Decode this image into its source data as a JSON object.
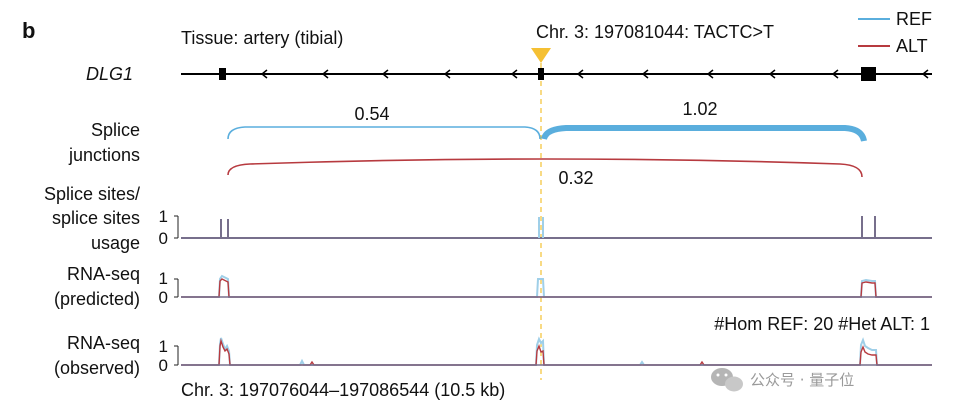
{
  "panel_label": "b",
  "legend": {
    "ref": {
      "label": "REF",
      "color": "#5aaedd"
    },
    "alt": {
      "label": "ALT",
      "color": "#b73a3f"
    }
  },
  "tissue_label": "Tissue: artery (tibial)",
  "variant_label": "Chr. 3: 197081044: TACTC>T",
  "gene_label": "DLG1",
  "splice_junctions": {
    "label_line1": "Splice",
    "label_line2": "junctions",
    "ref_left_value": "0.54",
    "ref_right_value": "1.02",
    "alt_value": "0.32"
  },
  "splice_sites_track": {
    "label_line1": "Splice sites/",
    "label_line2": "splice sites",
    "label_line3": "usage",
    "tick_top": "1",
    "tick_bottom": "0"
  },
  "rnaseq_predicted_track": {
    "label_line1": "RNA-seq",
    "label_line2": "(predicted)",
    "tick_top": "1",
    "tick_bottom": "0"
  },
  "rnaseq_observed_track": {
    "label_line1": "RNA-seq",
    "label_line2": "(observed)",
    "tick_top": "1",
    "tick_bottom": "0",
    "sample_counts": "#Hom REF: 20 #Het ALT: 1"
  },
  "coordinates_label": "Chr. 3: 197076044–197086544 (10.5 kb)",
  "watermark": {
    "text": "公众号 · 量子位",
    "icon": "wechat-icon"
  }
}
